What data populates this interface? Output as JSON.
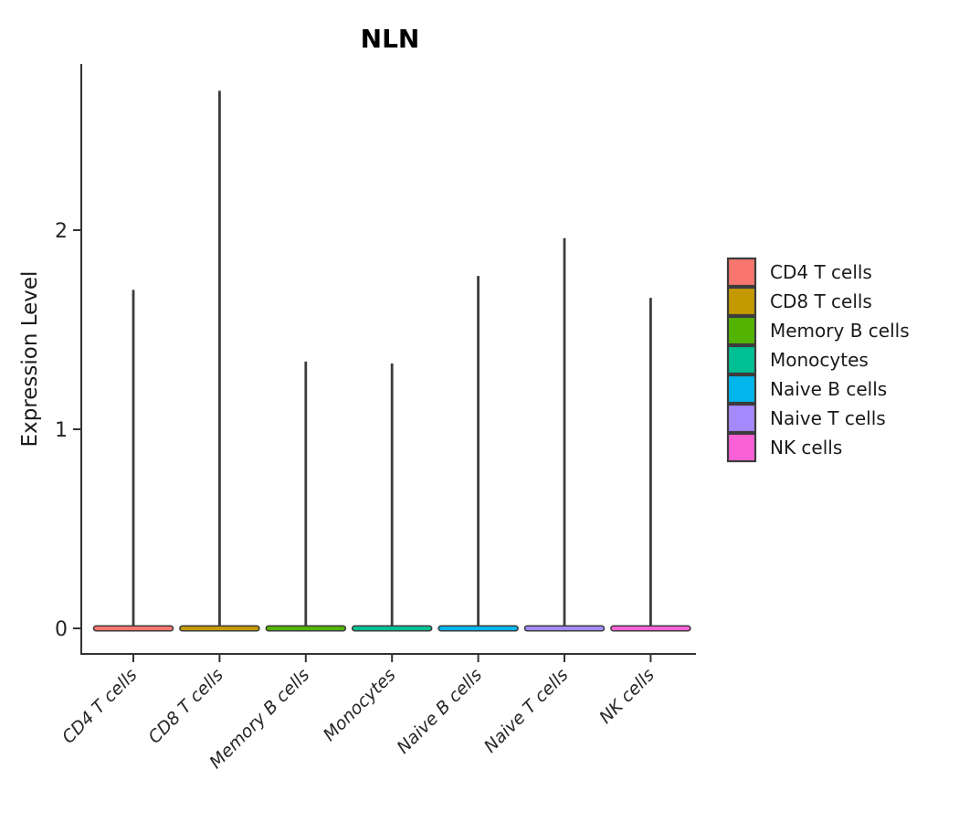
{
  "chart_data": {
    "type": "violin",
    "title": "NLN",
    "xlabel": "",
    "ylabel": "Expression Level",
    "categories": [
      "CD4 T cells",
      "CD8 T cells",
      "Memory B cells",
      "Monocytes",
      "Naive B cells",
      "Naive T cells",
      "NK cells"
    ],
    "series": [
      {
        "name": "CD4 T cells",
        "color": "#F8766D",
        "baseline_expression": 0,
        "max_expression": 1.7
      },
      {
        "name": "CD8 T cells",
        "color": "#C49A00",
        "baseline_expression": 0,
        "max_expression": 2.7
      },
      {
        "name": "Memory B cells",
        "color": "#53B400",
        "baseline_expression": 0,
        "max_expression": 1.34
      },
      {
        "name": "Monocytes",
        "color": "#00C094",
        "baseline_expression": 0,
        "max_expression": 1.33
      },
      {
        "name": "Naive B cells",
        "color": "#00B6EB",
        "baseline_expression": 0,
        "max_expression": 1.77
      },
      {
        "name": "Naive T cells",
        "color": "#A58AFF",
        "baseline_expression": 0,
        "max_expression": 1.96
      },
      {
        "name": "NK cells",
        "color": "#FB61D7",
        "baseline_expression": 0,
        "max_expression": 1.66
      }
    ],
    "yticks": [
      0,
      1,
      2
    ],
    "ylim": [
      -0.13,
      2.84
    ],
    "grid": false,
    "legend_position": "right",
    "legend": [
      {
        "label": "CD4 T cells",
        "color": "#F8766D"
      },
      {
        "label": "CD8 T cells",
        "color": "#C49A00"
      },
      {
        "label": "Memory B cells",
        "color": "#53B400"
      },
      {
        "label": "Monocytes",
        "color": "#00C094"
      },
      {
        "label": "Naive B cells",
        "color": "#00B6EB"
      },
      {
        "label": "Naive T cells",
        "color": "#A58AFF"
      },
      {
        "label": "NK cells",
        "color": "#FB61D7"
      }
    ],
    "style": {
      "violin_outline_color": "#3C3C3C",
      "axis_color": "#333333",
      "background": "#ffffff"
    }
  }
}
